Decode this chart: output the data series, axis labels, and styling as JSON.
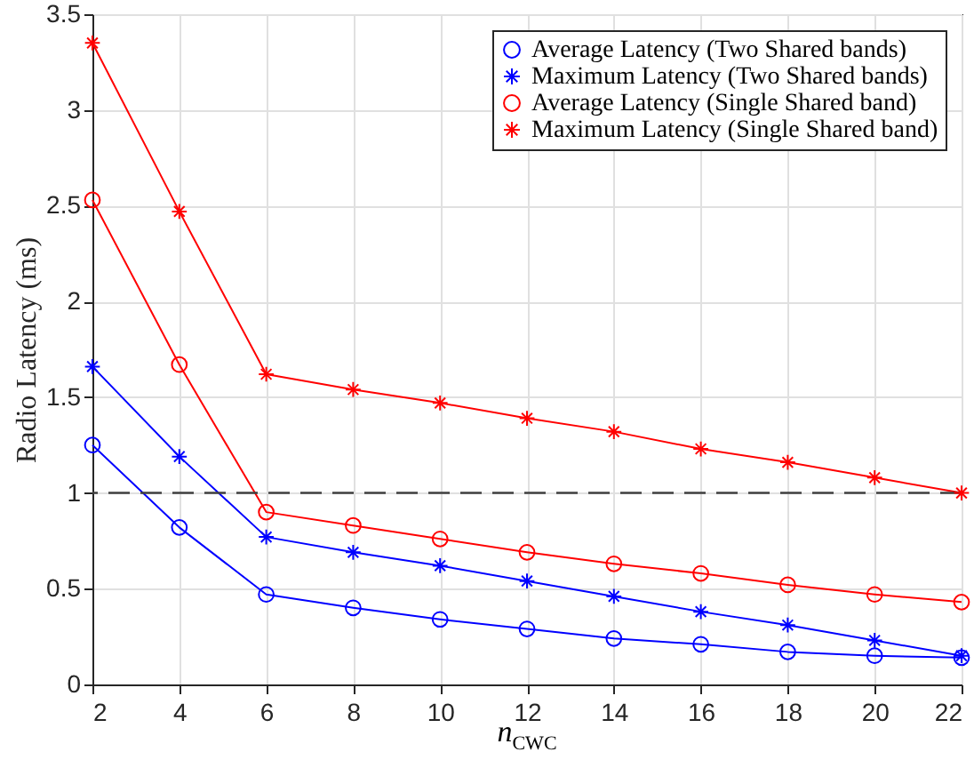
{
  "chart_data": {
    "type": "line",
    "xlabel": "n$_{CWC}$",
    "ylabel": "Radio Latency (ms)",
    "x": [
      2,
      4,
      6,
      8,
      10,
      12,
      14,
      16,
      18,
      20,
      22
    ],
    "series": [
      {
        "name": "Average Latency (Two Shared bands)",
        "color": "#0000ff",
        "marker": "circle",
        "values": [
          1.25,
          0.82,
          0.47,
          0.4,
          0.34,
          0.29,
          0.24,
          0.21,
          0.17,
          0.15,
          0.14
        ]
      },
      {
        "name": "Maximum Latency (Two Shared bands)",
        "color": "#0000ff",
        "marker": "cross",
        "values": [
          1.66,
          1.19,
          0.77,
          0.69,
          0.62,
          0.54,
          0.46,
          0.38,
          0.31,
          0.23,
          0.15
        ]
      },
      {
        "name": "Average Latency (Single Shared band)",
        "color": "#ff0000",
        "marker": "circle",
        "values": [
          2.53,
          1.67,
          0.9,
          0.83,
          0.76,
          0.69,
          0.63,
          0.58,
          0.52,
          0.47,
          0.43
        ]
      },
      {
        "name": "Maximum Latency (Single Shared band)",
        "color": "#ff0000",
        "marker": "cross",
        "values": [
          3.35,
          2.47,
          1.62,
          1.54,
          1.47,
          1.39,
          1.32,
          1.23,
          1.16,
          1.08,
          1.0
        ]
      }
    ],
    "xlim": [
      2,
      22
    ],
    "xticks": [
      2,
      4,
      6,
      8,
      10,
      12,
      14,
      16,
      18,
      20,
      22
    ],
    "ylim": [
      0,
      3.5
    ],
    "yticks": [
      0,
      0.5,
      1,
      1.5,
      2,
      2.5,
      3,
      3.5
    ],
    "ref_lines": [
      {
        "axis": "y",
        "value": 1,
        "color": "#404040",
        "line_style": "dashed"
      }
    ],
    "grid": true,
    "legend": "top right",
    "line_style": "solid"
  }
}
